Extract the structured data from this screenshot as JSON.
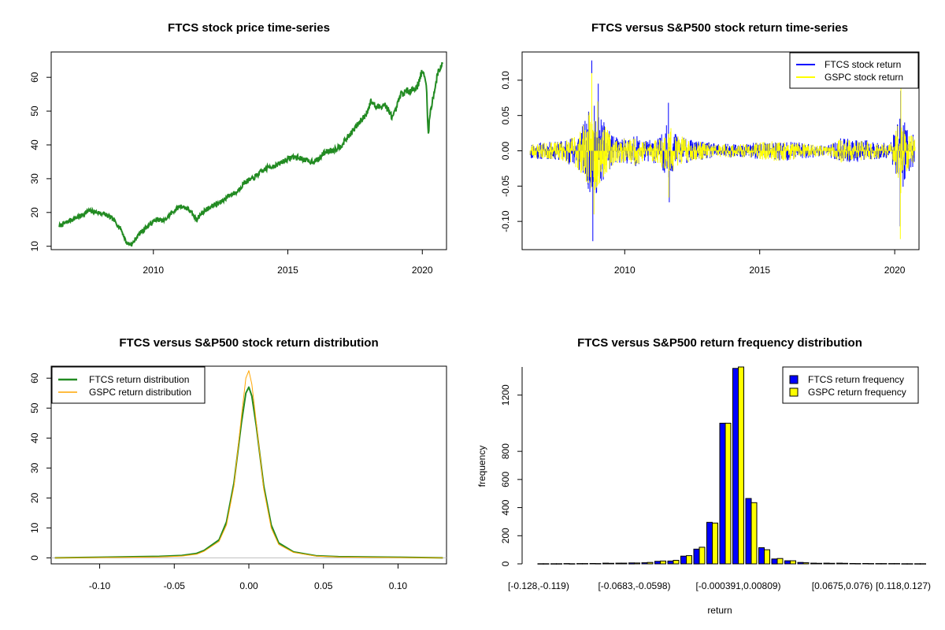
{
  "colors": {
    "ftcs_price": "#228b22",
    "ftcs_return": "#0000ff",
    "gspc_return": "#ffff00",
    "ftcs_density": "#228b22",
    "gspc_density": "#ffa500",
    "ftcs_hist": "#0000ff",
    "gspc_hist": "#ffff00"
  },
  "chart_data": [
    {
      "type": "line",
      "title": "FTCS stock price time-series",
      "xlabel": "",
      "ylabel": "",
      "x_ticks": [
        "2010",
        "2015",
        "2020"
      ],
      "y_ticks": [
        "10",
        "20",
        "30",
        "40",
        "50",
        "60"
      ],
      "xlim": [
        2006.2,
        2020.9
      ],
      "ylim": [
        9,
        67.5
      ],
      "series": [
        {
          "x": [
            2006.5,
            2007.0,
            2007.3,
            2007.6,
            2007.9,
            2008.2,
            2008.5,
            2008.8,
            2009.0,
            2009.2,
            2009.5,
            2009.8,
            2010.1,
            2010.4,
            2010.7,
            2011.0,
            2011.3,
            2011.6,
            2011.9,
            2012.2,
            2012.5,
            2012.8,
            2013.1,
            2013.4,
            2013.7,
            2014.0,
            2014.3,
            2014.6,
            2014.9,
            2015.2,
            2015.5,
            2015.8,
            2016.1,
            2016.4,
            2016.7,
            2017.0,
            2017.3,
            2017.6,
            2017.9,
            2018.1,
            2018.3,
            2018.6,
            2018.9,
            2019.0,
            2019.2,
            2019.5,
            2019.8,
            2020.0,
            2020.15,
            2020.22,
            2020.3,
            2020.45,
            2020.6,
            2020.75
          ],
          "values": [
            16,
            18,
            19,
            20.5,
            20,
            19.5,
            18,
            15,
            11,
            10.5,
            14,
            16,
            18,
            17.5,
            20,
            22,
            21,
            18,
            20.5,
            22,
            23,
            25,
            26,
            29,
            30,
            32,
            33.5,
            34,
            35.5,
            36.5,
            36,
            35,
            35.5,
            38,
            38.5,
            40,
            43,
            46,
            49,
            53,
            51,
            52,
            48,
            50,
            55,
            56,
            57,
            62,
            58,
            43,
            50,
            56,
            62,
            64
          ]
        }
      ]
    },
    {
      "type": "line",
      "title": "FTCS versus S&P500 stock return time-series",
      "xlabel": "",
      "ylabel": "",
      "x_ticks": [
        "2010",
        "2015",
        "2020"
      ],
      "y_ticks": [
        "-0.10",
        "-0.05",
        "0.00",
        "0.05",
        "0.10"
      ],
      "xlim": [
        2006.2,
        2020.9
      ],
      "ylim": [
        -0.14,
        0.14
      ],
      "legend": {
        "position": "top-right",
        "entries": [
          "FTCS stock return",
          "GSPC stock return"
        ]
      },
      "volatility_envelope": {
        "x": [
          2006.5,
          2007.5,
          2008.0,
          2008.5,
          2008.8,
          2009.0,
          2009.3,
          2009.6,
          2010.0,
          2010.4,
          2010.8,
          2011.3,
          2011.6,
          2011.9,
          2012.5,
          2013.5,
          2014.5,
          2015.5,
          2016.0,
          2016.5,
          2017.5,
          2018.0,
          2018.5,
          2019.0,
          2019.8,
          2020.15,
          2020.25,
          2020.4,
          2020.75
        ],
        "amplitude": [
          0.012,
          0.013,
          0.02,
          0.04,
          0.07,
          0.06,
          0.035,
          0.02,
          0.018,
          0.022,
          0.015,
          0.02,
          0.04,
          0.025,
          0.015,
          0.01,
          0.01,
          0.015,
          0.014,
          0.012,
          0.007,
          0.018,
          0.016,
          0.015,
          0.01,
          0.045,
          0.07,
          0.035,
          0.02
        ]
      },
      "spikes": {
        "ftcs": [
          [
            2008.78,
            0.128
          ],
          [
            2008.82,
            -0.128
          ],
          [
            2009.02,
            0.095
          ],
          [
            2011.62,
            0.068
          ],
          [
            2011.65,
            -0.073
          ],
          [
            2020.2,
            -0.107
          ],
          [
            2020.22,
            0.085
          ]
        ],
        "gspc": [
          [
            2008.78,
            0.11
          ],
          [
            2008.86,
            -0.09
          ],
          [
            2009.0,
            0.07
          ],
          [
            2011.63,
            -0.066
          ],
          [
            2020.21,
            -0.125
          ],
          [
            2020.23,
            0.09
          ]
        ]
      }
    },
    {
      "type": "line",
      "title": "FTCS versus S&P500 stock return distribution",
      "xlabel": "",
      "ylabel": "",
      "x_ticks": [
        "-0.10",
        "-0.05",
        "0.00",
        "0.05",
        "0.10"
      ],
      "y_ticks": [
        "0",
        "10",
        "20",
        "30",
        "40",
        "50",
        "60"
      ],
      "xlim": [
        -0.1325,
        0.1325
      ],
      "ylim": [
        -2,
        64
      ],
      "legend": {
        "position": "top-left",
        "entries": [
          "FTCS return distribution",
          "GSPC return distribution"
        ]
      },
      "series": [
        {
          "name": "FTCS return distribution",
          "x": [
            -0.13,
            -0.1,
            -0.06,
            -0.045,
            -0.035,
            -0.03,
            -0.02,
            -0.015,
            -0.01,
            -0.005,
            -0.002,
            0.0,
            0.002,
            0.005,
            0.01,
            0.015,
            0.02,
            0.03,
            0.045,
            0.06,
            0.1,
            0.13
          ],
          "values": [
            0,
            0.2,
            0.5,
            0.8,
            1.5,
            2.5,
            6,
            12,
            25,
            45,
            55,
            57,
            54,
            44,
            24,
            11,
            5,
            2,
            0.7,
            0.4,
            0.2,
            0
          ]
        },
        {
          "name": "GSPC return distribution",
          "x": [
            -0.13,
            -0.1,
            -0.06,
            -0.045,
            -0.035,
            -0.03,
            -0.02,
            -0.015,
            -0.01,
            -0.005,
            -0.002,
            0.0,
            0.002,
            0.005,
            0.01,
            0.015,
            0.02,
            0.03,
            0.045,
            0.06,
            0.1,
            0.13
          ],
          "values": [
            0,
            0.1,
            0.3,
            0.6,
            1.2,
            2.2,
            5.5,
            11,
            24,
            47,
            60,
            62.5,
            58,
            45,
            23,
            10,
            4.5,
            1.8,
            0.6,
            0.3,
            0.1,
            0
          ]
        }
      ]
    },
    {
      "type": "bar",
      "title": "FTCS versus S&P500 return frequency distribution",
      "xlabel": "return",
      "ylabel": "frequency",
      "x_ticks": [
        "[-0.128,-0.119)",
        "[-0.0683,-0.0598)",
        "[-0.000391,0.00809)",
        "[0.0675,0.076)",
        "[0.118,0.127)"
      ],
      "x_tick_category_index": [
        0,
        7,
        15,
        23,
        29
      ],
      "y_ticks": [
        "0",
        "200",
        "400",
        "600",
        "800",
        "1200"
      ],
      "y_tick_values": [
        0,
        200,
        400,
        600,
        800,
        1200
      ],
      "ylim": [
        0,
        1400
      ],
      "legend": {
        "position": "top-right",
        "entries": [
          "FTCS return frequency",
          "GSPC return frequency"
        ]
      },
      "series": [
        {
          "name": "FTCS return frequency",
          "values": [
            1,
            1,
            2,
            2,
            3,
            5,
            5,
            7,
            8,
            18,
            20,
            55,
            105,
            295,
            1000,
            1390,
            465,
            115,
            35,
            22,
            10,
            5,
            5,
            5,
            3,
            3,
            2,
            2,
            1,
            1
          ]
        },
        {
          "name": "GSPC return frequency",
          "values": [
            1,
            1,
            1,
            2,
            2,
            4,
            5,
            6,
            10,
            20,
            25,
            58,
            118,
            290,
            1000,
            1400,
            435,
            100,
            38,
            22,
            8,
            4,
            4,
            4,
            2,
            2,
            2,
            2,
            1,
            1
          ]
        }
      ]
    }
  ]
}
